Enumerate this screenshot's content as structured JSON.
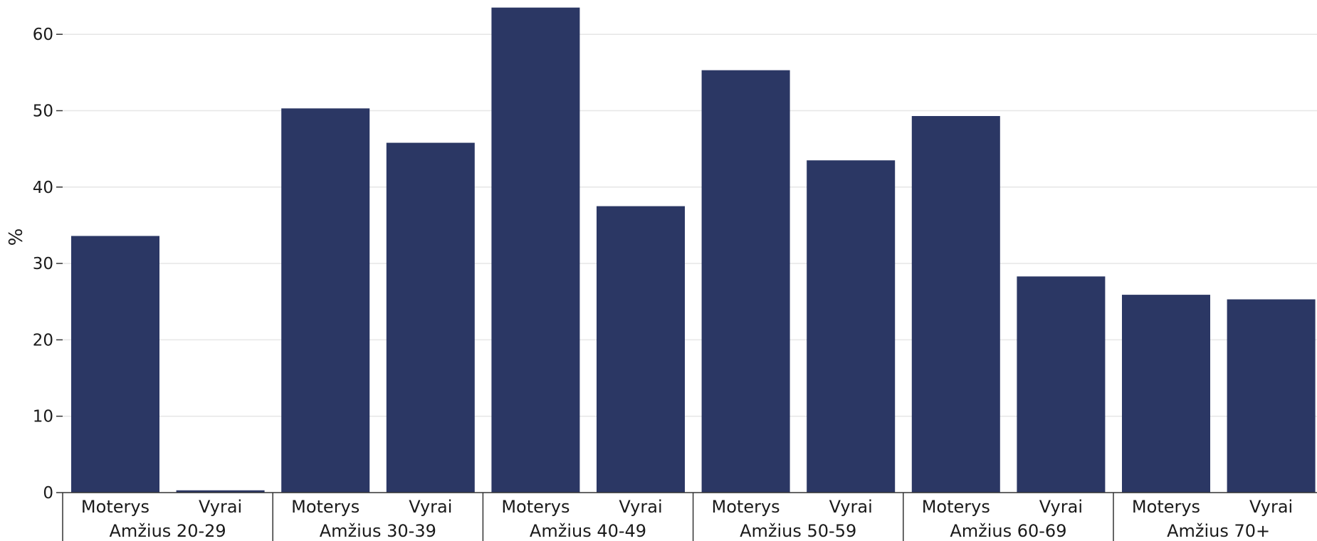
{
  "chart_data": {
    "type": "bar",
    "ylabel": "%",
    "ylim": [
      0,
      70
    ],
    "yticks": [
      0,
      10,
      20,
      30,
      40,
      50,
      60
    ],
    "grid": true,
    "bar_color": "#2b3764",
    "groups": [
      {
        "label": "Amžius 20-29",
        "bars": [
          {
            "category": "Moterys",
            "value": 33.6
          },
          {
            "category": "Vyrai",
            "value": 0.3
          }
        ]
      },
      {
        "label": "Amžius 30-39",
        "bars": [
          {
            "category": "Moterys",
            "value": 50.3
          },
          {
            "category": "Vyrai",
            "value": 45.8
          }
        ]
      },
      {
        "label": "Amžius 40-49",
        "bars": [
          {
            "category": "Moterys",
            "value": 63.5
          },
          {
            "category": "Vyrai",
            "value": 37.5
          }
        ]
      },
      {
        "label": "Amžius 50-59",
        "bars": [
          {
            "category": "Moterys",
            "value": 55.3
          },
          {
            "category": "Vyrai",
            "value": 43.5
          }
        ]
      },
      {
        "label": "Amžius 60-69",
        "bars": [
          {
            "category": "Moterys",
            "value": 49.3
          },
          {
            "category": "Vyrai",
            "value": 28.3
          }
        ]
      },
      {
        "label": "Amžius 70+",
        "bars": [
          {
            "category": "Moterys",
            "value": 25.9
          },
          {
            "category": "Vyrai",
            "value": 25.3
          }
        ]
      }
    ]
  }
}
